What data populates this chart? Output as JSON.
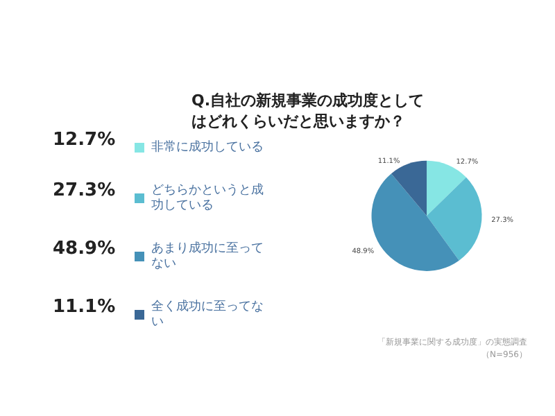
{
  "chart_data": {
    "type": "pie",
    "title": "Q.自社の新規事業の成功度としてはどれくらいだと思いますか？",
    "categories": [
      "非常に成功している",
      "どちらかというと成功している",
      "あまり成功に至ってない",
      "全く成功に至ってない"
    ],
    "values": [
      12.7,
      27.3,
      48.9,
      11.1
    ],
    "value_labels": [
      "12.7%",
      "27.3%",
      "48.9%",
      "11.1%"
    ],
    "colors": [
      "#86e6e4",
      "#5bbdd1",
      "#4591b8",
      "#3a6896"
    ],
    "legend": "left",
    "annotations": [
      "「新規事業に関する成功度」の実態調査",
      "（N=956）"
    ]
  }
}
